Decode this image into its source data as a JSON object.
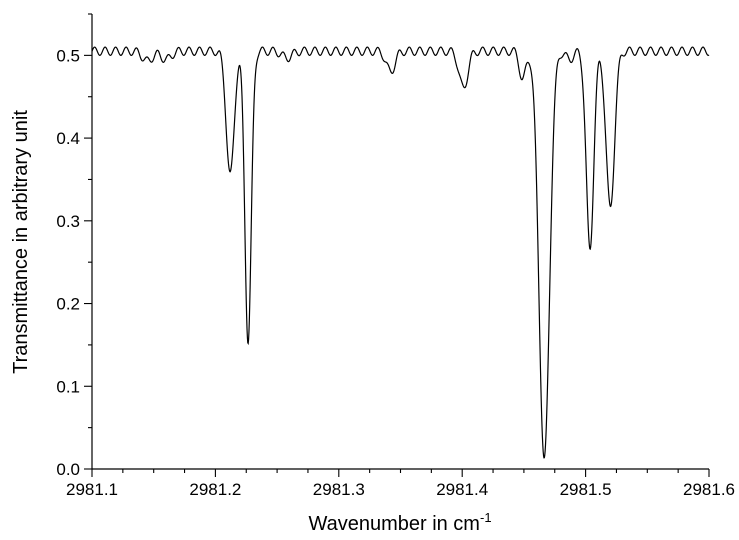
{
  "chart_data": {
    "type": "line",
    "xlabel": "Wavenumber in cm",
    "xlabel_superscript": "-1",
    "ylabel": "Transmittance in arbitrary unit",
    "xlim": [
      2981.1,
      2981.6
    ],
    "ylim": [
      0.0,
      0.55
    ],
    "x_ticks": [
      2981.1,
      2981.2,
      2981.3,
      2981.4,
      2981.5,
      2981.6
    ],
    "x_tick_labels": [
      "2981.1",
      "2981.2",
      "2981.3",
      "2981.4",
      "2981.5",
      "2981.6"
    ],
    "y_ticks": [
      0.0,
      0.1,
      0.2,
      0.3,
      0.4,
      0.5
    ],
    "y_tick_labels": [
      "0.0",
      "0.1",
      "0.2",
      "0.3",
      "0.4",
      "0.5"
    ],
    "x_minor_step": 0.025,
    "y_minor_step": 0.05,
    "grid": false,
    "baseline": 0.505,
    "ripple_amplitude": 0.005,
    "ripple_period": 0.0085,
    "features": [
      {
        "center": 2981.145,
        "depth": 0.012,
        "width": 0.004
      },
      {
        "center": 2981.16,
        "depth": 0.01,
        "width": 0.004
      },
      {
        "center": 2981.212,
        "depth": 0.15,
        "width": 0.0032
      },
      {
        "center": 2981.2265,
        "depth": 0.35,
        "width": 0.0026
      },
      {
        "center": 2981.258,
        "depth": 0.008,
        "width": 0.004
      },
      {
        "center": 2981.342,
        "depth": 0.025,
        "width": 0.0035
      },
      {
        "center": 2981.401,
        "depth": 0.045,
        "width": 0.0035
      },
      {
        "center": 2981.449,
        "depth": 0.035,
        "width": 0.0025
      },
      {
        "center": 2981.4665,
        "depth": 0.495,
        "width": 0.0042
      },
      {
        "center": 2981.487,
        "depth": 0.01,
        "width": 0.003
      },
      {
        "center": 2981.5035,
        "depth": 0.24,
        "width": 0.003
      },
      {
        "center": 2981.52,
        "depth": 0.19,
        "width": 0.0034
      }
    ]
  }
}
